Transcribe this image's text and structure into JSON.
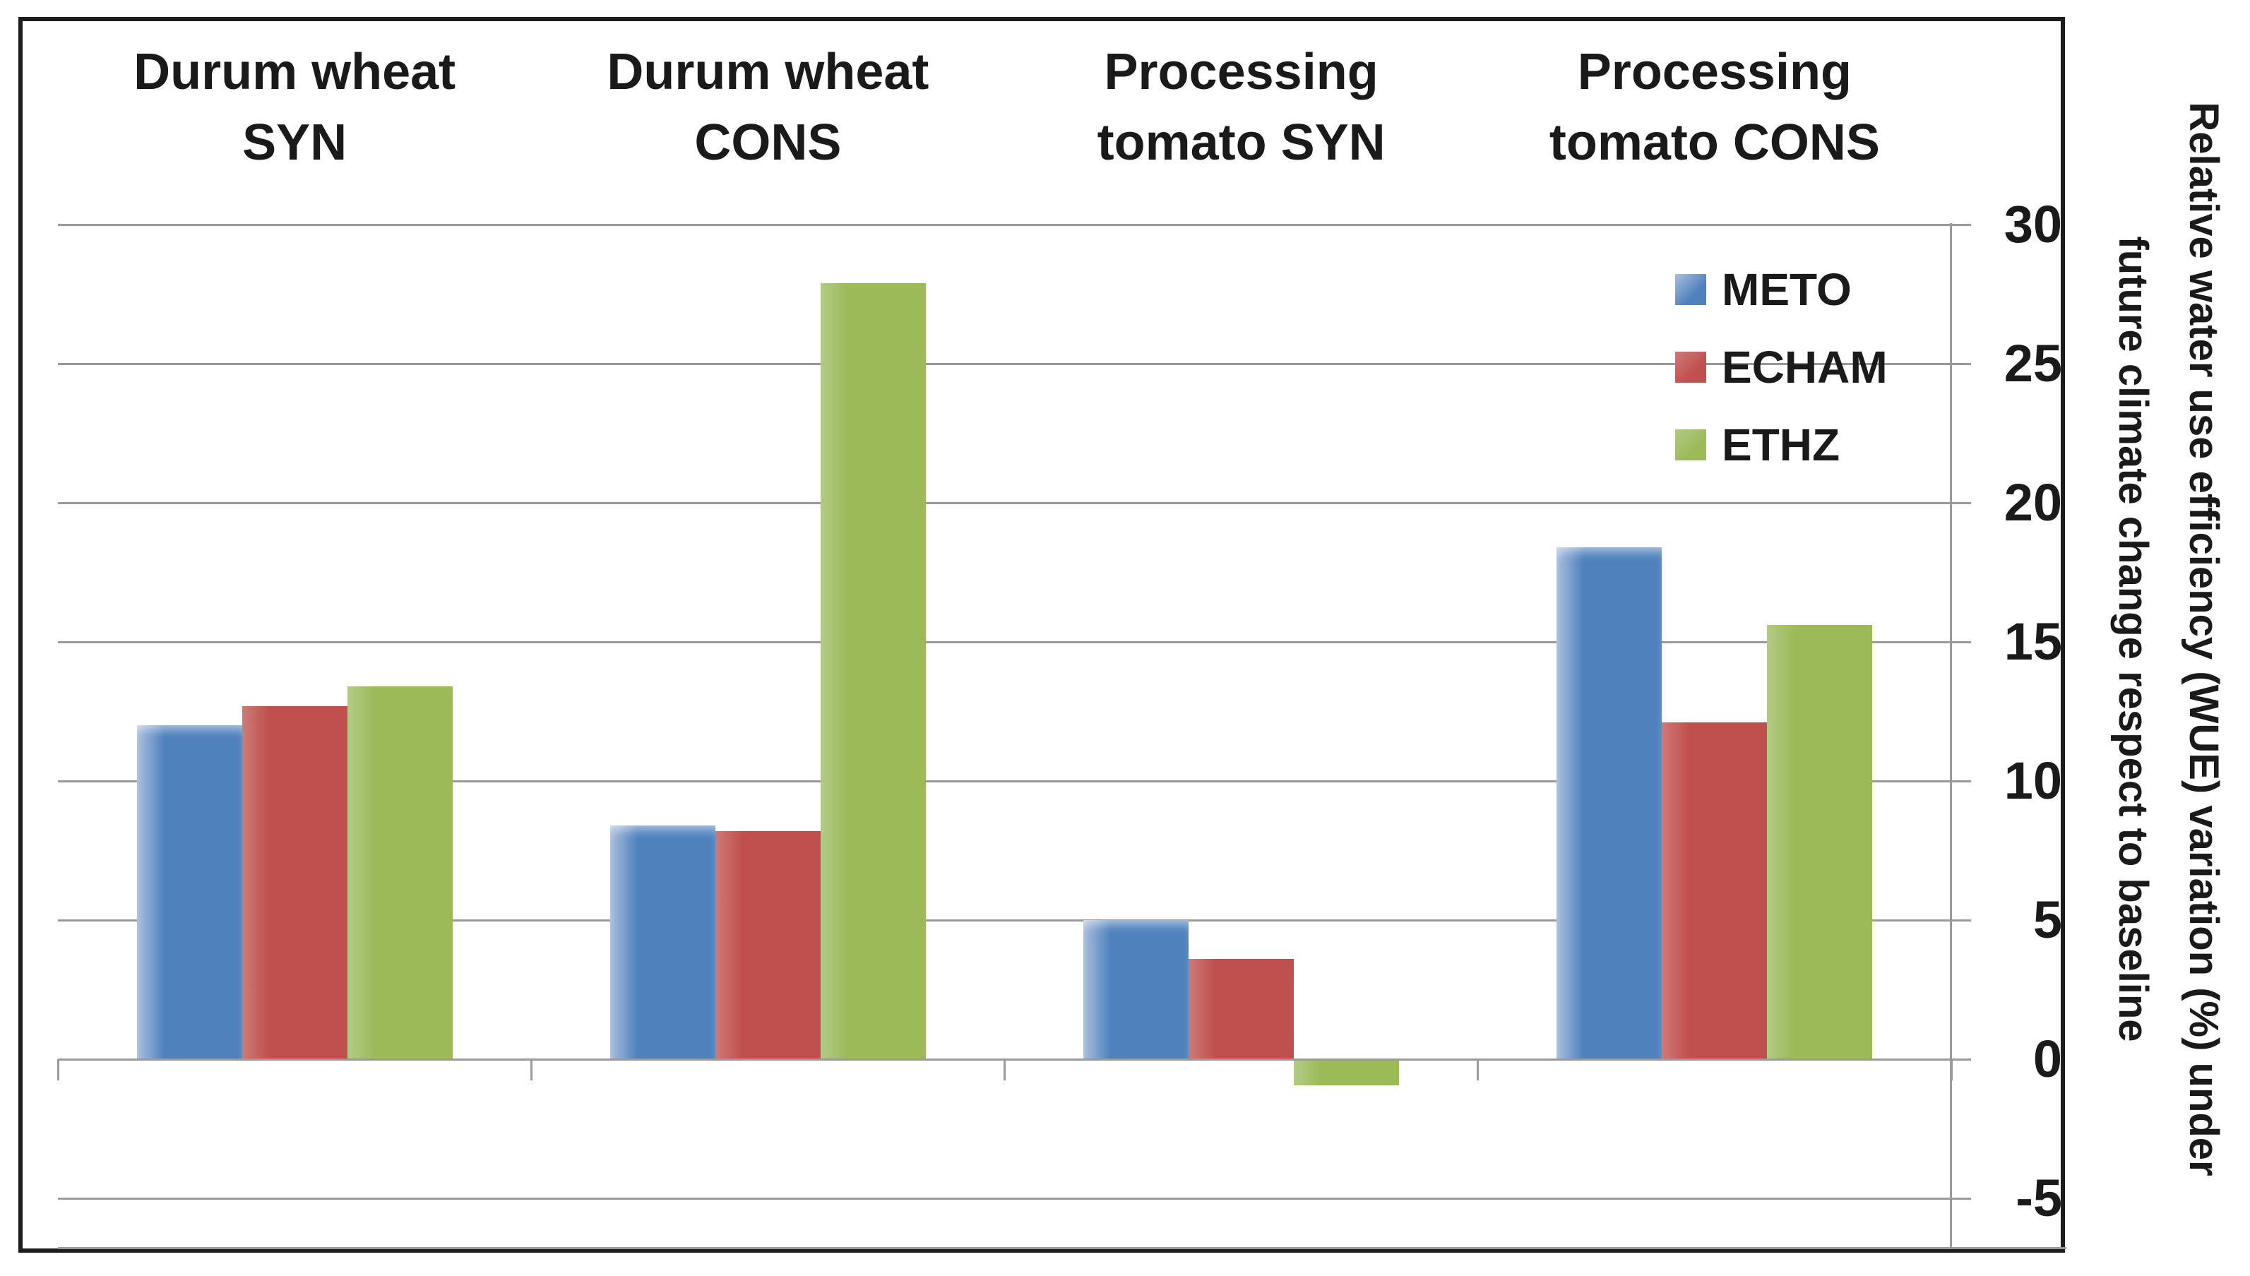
{
  "chart_data": {
    "type": "bar",
    "title": "",
    "categories": [
      "Durum wheat SYN",
      "Durum wheat CONS",
      "Processing tomato SYN",
      "Processing tomato CONS"
    ],
    "category_labels": [
      [
        "Durum wheat",
        "SYN"
      ],
      [
        "Durum wheat",
        "CONS"
      ],
      [
        "Processing",
        "tomato SYN"
      ],
      [
        "Processing",
        "tomato CONS"
      ]
    ],
    "series": [
      {
        "name": "METO",
        "color": "#4f81bd",
        "color_light": "#aabfdc",
        "values": [
          12.0,
          8.4,
          5.0,
          18.4
        ]
      },
      {
        "name": "ECHAM",
        "color": "#c0504d",
        "color_light": "#cd7a77",
        "values": [
          12.7,
          8.2,
          3.6,
          12.1
        ]
      },
      {
        "name": "ETHZ",
        "color": "#9bbb59",
        "color_light": "#b4ca85",
        "values": [
          13.4,
          27.9,
          -0.9,
          15.6
        ]
      }
    ],
    "ylabel_line1": "Relative water use efficiency (WUE) variation (%) under",
    "ylabel_line2": "future climate change respect to baseline",
    "yticks": [
      30,
      25,
      20,
      15,
      10,
      5,
      0,
      -5
    ],
    "ytick_labels": [
      "30",
      "25",
      "20",
      "15",
      "10",
      "5",
      "0",
      "-5"
    ],
    "ylim": [
      -6.8,
      30
    ],
    "grid": true,
    "legend_position": "top-right-inside",
    "gridline_color": "#9a9a9a",
    "border_color": "#1c1c1c",
    "background": "#ffffff",
    "text_color": "#1a1a1a"
  }
}
